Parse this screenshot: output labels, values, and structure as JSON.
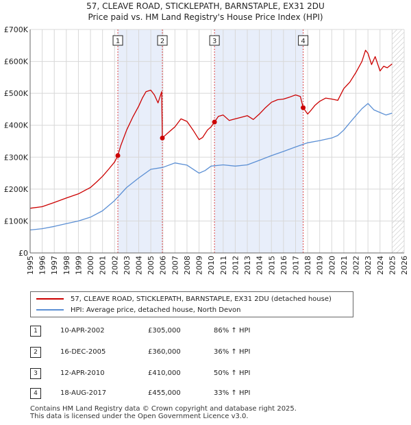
{
  "chart_data": {
    "type": "line",
    "title": "57, CLEAVE ROAD, STICKLEPATH, BARNSTAPLE, EX31 2DU",
    "subtitle": "Price paid vs. HM Land Registry's House Price Index (HPI)",
    "xlim": [
      1995,
      2026
    ],
    "ylim": [
      0,
      700000
    ],
    "y_ticks": [
      0,
      100000,
      200000,
      300000,
      400000,
      500000,
      600000,
      700000
    ],
    "y_tick_labels": [
      "£0",
      "£100K",
      "£200K",
      "£300K",
      "£400K",
      "£500K",
      "£600K",
      "£700K"
    ],
    "x_ticks": [
      1995,
      1996,
      1997,
      1998,
      1999,
      2000,
      2001,
      2002,
      2003,
      2004,
      2005,
      2006,
      2007,
      2008,
      2009,
      2010,
      2011,
      2012,
      2013,
      2014,
      2015,
      2016,
      2017,
      2018,
      2019,
      2020,
      2021,
      2022,
      2023,
      2024,
      2025,
      2026
    ],
    "grid": true,
    "shaded_periods": [
      [
        2002.27,
        2005.96
      ],
      [
        2010.28,
        2017.63
      ]
    ],
    "hatched_after": 2025.0,
    "series": [
      {
        "name": "57, CLEAVE ROAD, STICKLEPATH, BARNSTAPLE, EX31 2DU (detached house)",
        "color": "#cc0000",
        "x": [
          1995.0,
          1996.0,
          1997.0,
          1998.0,
          1999.0,
          2000.0,
          2000.5,
          2001.0,
          2001.5,
          2002.0,
          2002.27,
          2002.5,
          2003.0,
          2003.5,
          2004.0,
          2004.3,
          2004.6,
          2005.0,
          2005.3,
          2005.6,
          2005.9,
          2005.96,
          2006.3,
          2007.0,
          2007.5,
          2008.0,
          2008.5,
          2009.0,
          2009.3,
          2009.7,
          2010.0,
          2010.28,
          2010.6,
          2011.0,
          2011.5,
          2012.0,
          2012.5,
          2013.0,
          2013.5,
          2014.0,
          2014.5,
          2015.0,
          2015.5,
          2016.0,
          2016.5,
          2017.0,
          2017.4,
          2017.63,
          2018.0,
          2018.3,
          2018.6,
          2019.0,
          2019.5,
          2020.0,
          2020.5,
          2021.0,
          2021.5,
          2022.0,
          2022.5,
          2022.8,
          2023.0,
          2023.3,
          2023.6,
          2024.0,
          2024.3,
          2024.6,
          2025.0
        ],
        "values": [
          140000,
          145000,
          158000,
          172000,
          185000,
          205000,
          222000,
          240000,
          262000,
          285000,
          305000,
          335000,
          385000,
          425000,
          460000,
          485000,
          505000,
          510000,
          495000,
          470000,
          505000,
          360000,
          372000,
          395000,
          420000,
          412000,
          385000,
          355000,
          362000,
          385000,
          395000,
          410000,
          428000,
          432000,
          415000,
          420000,
          425000,
          430000,
          418000,
          435000,
          455000,
          472000,
          480000,
          482000,
          488000,
          495000,
          490000,
          455000,
          435000,
          448000,
          462000,
          475000,
          485000,
          482000,
          478000,
          515000,
          535000,
          565000,
          600000,
          635000,
          625000,
          590000,
          615000,
          570000,
          585000,
          580000,
          592000
        ]
      },
      {
        "name": "HPI: Average price, detached house, North Devon",
        "color": "#5b8fd4",
        "x": [
          1995.0,
          1996.0,
          1997.0,
          1998.0,
          1999.0,
          2000.0,
          2001.0,
          2002.0,
          2003.0,
          2004.0,
          2005.0,
          2006.0,
          2007.0,
          2008.0,
          2009.0,
          2009.5,
          2010.0,
          2011.0,
          2012.0,
          2013.0,
          2014.0,
          2015.0,
          2016.0,
          2017.0,
          2018.0,
          2019.0,
          2020.0,
          2020.5,
          2021.0,
          2021.5,
          2022.0,
          2022.5,
          2023.0,
          2023.5,
          2024.0,
          2024.5,
          2025.0
        ],
        "values": [
          72000,
          76000,
          83000,
          92000,
          100000,
          112000,
          132000,
          164000,
          205000,
          235000,
          262000,
          268000,
          282000,
          275000,
          250000,
          258000,
          272000,
          276000,
          272000,
          276000,
          290000,
          305000,
          318000,
          332000,
          345000,
          352000,
          360000,
          368000,
          385000,
          408000,
          430000,
          452000,
          468000,
          448000,
          440000,
          432000,
          438000
        ]
      }
    ],
    "markers": [
      {
        "label": "1",
        "x": 2002.27,
        "y": 305000
      },
      {
        "label": "2",
        "x": 2005.96,
        "y": 360000
      },
      {
        "label": "3",
        "x": 2010.28,
        "y": 410000
      },
      {
        "label": "4",
        "x": 2017.63,
        "y": 455000
      }
    ]
  },
  "legend": {
    "property_label": "57, CLEAVE ROAD, STICKLEPATH, BARNSTAPLE, EX31 2DU (detached house)",
    "hpi_label": "HPI: Average price, detached house, North Devon"
  },
  "sales": [
    {
      "num": "1",
      "date": "10-APR-2002",
      "price": "£305,000",
      "hpi": "86% ↑ HPI"
    },
    {
      "num": "2",
      "date": "16-DEC-2005",
      "price": "£360,000",
      "hpi": "36% ↑ HPI"
    },
    {
      "num": "3",
      "date": "12-APR-2010",
      "price": "£410,000",
      "hpi": "50% ↑ HPI"
    },
    {
      "num": "4",
      "date": "18-AUG-2017",
      "price": "£455,000",
      "hpi": "33% ↑ HPI"
    }
  ],
  "footer": {
    "line1": "Contains HM Land Registry data © Crown copyright and database right 2025.",
    "line2": "This data is licensed under the Open Government Licence v3.0."
  },
  "colors": {
    "property": "#cc0000",
    "hpi": "#5b8fd4",
    "shade": "#e8eefa",
    "marker_line": "#dd4444"
  }
}
